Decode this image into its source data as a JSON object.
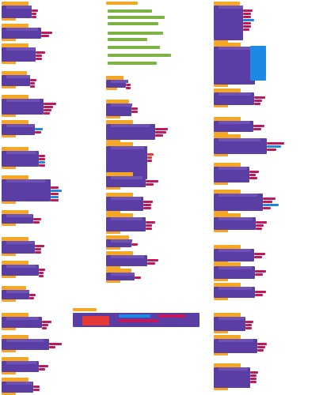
{
  "workspace": {
    "label": "",
    "colors": {
      "event_orange": "#f5a623",
      "procedure_purple": "#5a3ea4",
      "text_magenta": "#c2185b",
      "math_blue": "#1e88e5",
      "logic_green": "#7cb342",
      "control_red": "#e53935"
    }
  },
  "blocks": [
    {
      "label": "",
      "kind": "event"
    }
  ],
  "bottom_bar": {
    "label": ""
  }
}
